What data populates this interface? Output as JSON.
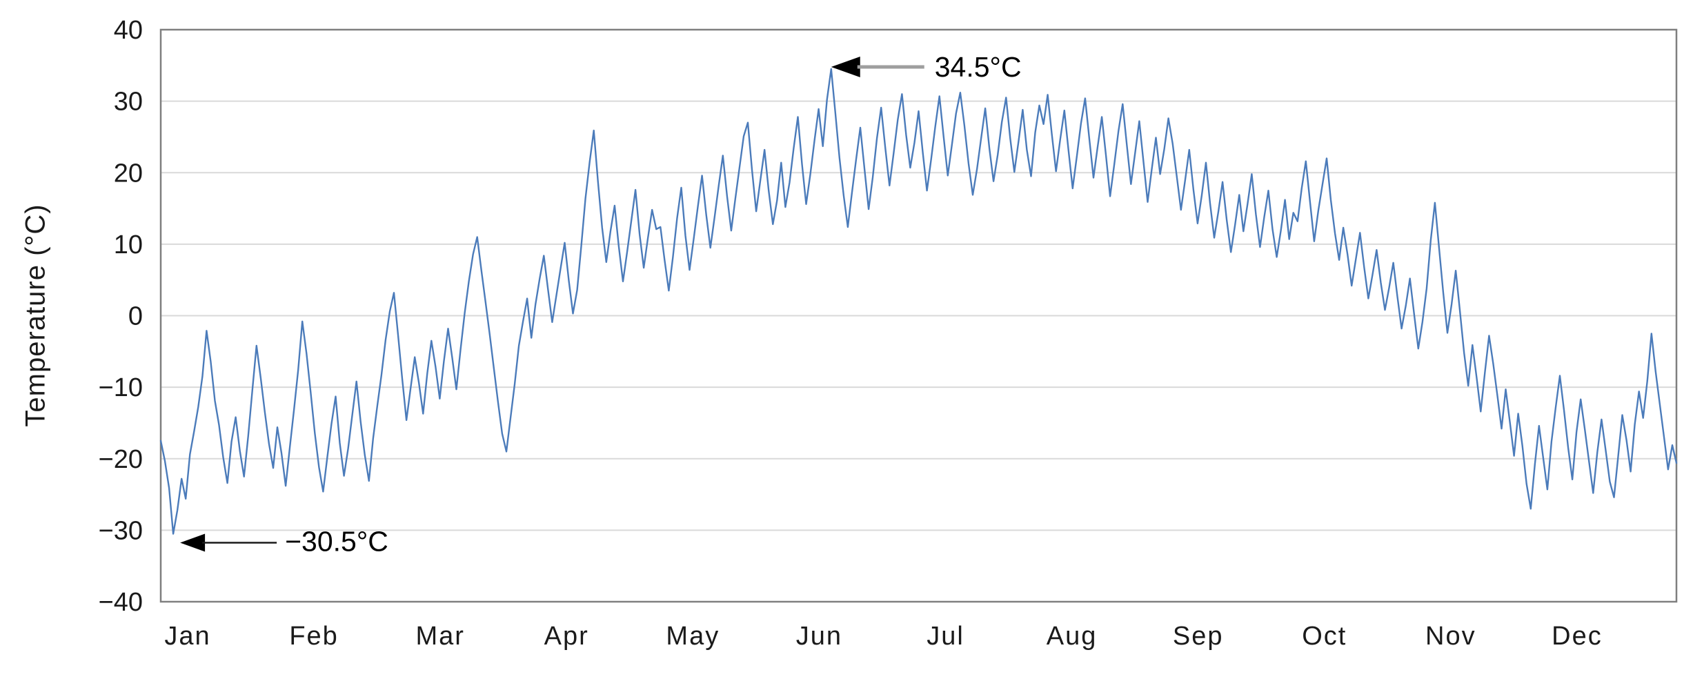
{
  "chart_data": {
    "type": "line",
    "title": "",
    "xlabel": "",
    "ylabel": "Temperature (°C)",
    "ylim": [
      -40,
      40
    ],
    "ytick_step": 10,
    "yticks": [
      "40",
      "30",
      "20",
      "10",
      "0",
      "−10",
      "−20",
      "−30",
      "−40"
    ],
    "ytick_values": [
      40,
      30,
      20,
      10,
      0,
      -10,
      -20,
      -30,
      -40
    ],
    "categories": [
      "Jan",
      "Feb",
      "Mar",
      "Apr",
      "May",
      "Jun",
      "Jul",
      "Aug",
      "Sep",
      "Oct",
      "Nov",
      "Dec"
    ],
    "grid": "horizontal",
    "legend": "none",
    "series": [
      {
        "name": "Daily temperature",
        "unit": "°C",
        "values": [
          -17.5,
          -20.3,
          -24.1,
          -30.5,
          -27.2,
          -22.8,
          -25.6,
          -19.4,
          -16.2,
          -12.8,
          -8.5,
          -2.1,
          -6.4,
          -11.9,
          -15.3,
          -19.8,
          -23.4,
          -17.6,
          -14.2,
          -18.9,
          -22.5,
          -16.8,
          -10.4,
          -4.2,
          -8.7,
          -13.5,
          -17.9,
          -21.3,
          -15.6,
          -19.2,
          -23.8,
          -18.4,
          -13.2,
          -7.6,
          -0.8,
          -5.3,
          -10.7,
          -16.4,
          -21.2,
          -24.6,
          -19.8,
          -15.1,
          -11.3,
          -17.8,
          -22.4,
          -18.6,
          -13.9,
          -9.2,
          -14.8,
          -19.5,
          -23.1,
          -17.2,
          -12.6,
          -8.3,
          -3.4,
          0.6,
          3.2,
          -2.7,
          -8.9,
          -14.6,
          -10.2,
          -5.8,
          -9.4,
          -13.7,
          -8.1,
          -3.5,
          -7.2,
          -11.6,
          -6.4,
          -1.8,
          -5.9,
          -10.3,
          -4.7,
          0.4,
          4.8,
          8.6,
          11.0,
          6.3,
          1.9,
          -2.6,
          -7.4,
          -12.1,
          -16.5,
          -19.0,
          -14.3,
          -9.6,
          -4.2,
          -0.8,
          2.4,
          -3.1,
          1.6,
          5.2,
          8.4,
          3.7,
          -0.9,
          2.8,
          6.5,
          10.2,
          4.9,
          0.3,
          3.6,
          9.8,
          16.4,
          21.5,
          25.9,
          18.7,
          12.3,
          7.5,
          11.8,
          15.4,
          9.7,
          4.8,
          8.9,
          13.2,
          17.6,
          11.4,
          6.7,
          10.9,
          14.8,
          12.1,
          12.4,
          7.8,
          3.5,
          8.2,
          13.6,
          17.9,
          11.2,
          6.4,
          10.8,
          15.3,
          19.6,
          14.1,
          9.5,
          13.8,
          18.2,
          22.4,
          16.7,
          11.9,
          16.4,
          20.8,
          25.1,
          27.0,
          20.3,
          14.6,
          18.9,
          23.2,
          17.5,
          12.8,
          16.1,
          21.4,
          15.2,
          18.6,
          23.4,
          27.8,
          21.2,
          15.6,
          19.8,
          24.5,
          28.9,
          23.7,
          30.2,
          34.5,
          28.4,
          22.1,
          16.8,
          12.4,
          17.2,
          21.9,
          26.3,
          20.6,
          14.9,
          19.4,
          24.8,
          29.1,
          23.5,
          18.2,
          22.7,
          27.4,
          31.0,
          25.3,
          20.7,
          24.2,
          28.6,
          22.9,
          17.5,
          21.8,
          26.4,
          30.7,
          25.1,
          19.6,
          23.9,
          28.3,
          31.2,
          26.6,
          21.3,
          16.9,
          20.4,
          24.7,
          29.0,
          23.4,
          18.8,
          22.5,
          27.1,
          30.5,
          24.8,
          20.1,
          24.4,
          28.8,
          23.2,
          19.5,
          25.6,
          29.4,
          26.8,
          30.9,
          25.4,
          20.2,
          24.6,
          28.7,
          23.1,
          17.8,
          22.3,
          26.9,
          30.4,
          24.7,
          19.3,
          23.6,
          27.8,
          22.4,
          16.7,
          21.2,
          25.8,
          29.6,
          23.9,
          18.4,
          22.8,
          27.2,
          21.6,
          15.9,
          20.5,
          24.9,
          19.8,
          23.3,
          27.6,
          24.1,
          19.5,
          14.8,
          18.9,
          23.2,
          17.6,
          12.9,
          16.8,
          21.4,
          15.7,
          10.9,
          14.6,
          18.7,
          13.4,
          8.9,
          12.7,
          16.9,
          11.8,
          15.6,
          19.8,
          14.2,
          9.6,
          13.8,
          17.5,
          12.1,
          8.2,
          11.9,
          16.2,
          10.7,
          14.4,
          13.2,
          17.8,
          21.6,
          15.9,
          10.4,
          14.7,
          18.4,
          22.0,
          16.2,
          11.5,
          7.8,
          12.3,
          8.6,
          4.2,
          7.9,
          11.6,
          6.8,
          2.4,
          5.7,
          9.2,
          4.6,
          0.8,
          3.9,
          7.4,
          2.6,
          -1.8,
          1.4,
          5.2,
          0.2,
          -4.6,
          -0.9,
          3.8,
          10.6,
          15.8,
          9.4,
          3.2,
          -2.4,
          1.6,
          6.3,
          0.7,
          -5.2,
          -9.8,
          -4.1,
          -8.6,
          -13.4,
          -7.9,
          -2.8,
          -6.7,
          -11.2,
          -15.8,
          -10.3,
          -14.9,
          -19.6,
          -13.7,
          -18.2,
          -23.5,
          -27.0,
          -20.8,
          -15.4,
          -19.9,
          -24.3,
          -17.6,
          -12.8,
          -8.4,
          -13.2,
          -18.5,
          -22.9,
          -16.3,
          -11.7,
          -15.9,
          -20.4,
          -24.8,
          -19.1,
          -14.5,
          -18.8,
          -23.2,
          -25.4,
          -19.7,
          -13.9,
          -17.4,
          -21.8,
          -15.2,
          -10.6,
          -14.3,
          -9.1,
          -2.5,
          -7.8,
          -12.4,
          -16.9,
          -21.5,
          -18.1,
          -20.6
        ]
      }
    ],
    "annotations": [
      {
        "text": "34.5°C",
        "target": "max",
        "value": 34.5
      },
      {
        "text": "−30.5°C",
        "target": "min",
        "value": -30.5
      }
    ],
    "colors": {
      "line": "#4b7bba",
      "gridline": "#d9d9d9",
      "border": "#7f7f7f",
      "tick_text": "#1a1a1a",
      "annotation_text": "#000000",
      "max_arrow_line": "#9e9e9e",
      "min_arrow_line": "#1a1a1a",
      "arrow_head": "#000000",
      "background": "#ffffff"
    }
  }
}
